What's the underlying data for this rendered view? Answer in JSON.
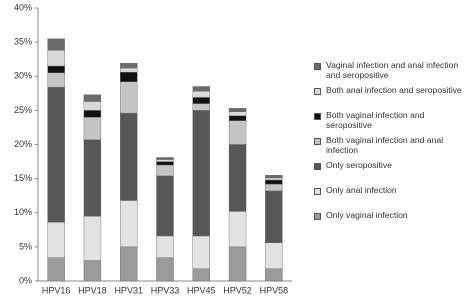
{
  "chart_data": {
    "type": "stacked-bar",
    "categories": [
      "HPV16",
      "HPV18",
      "HPV31",
      "HPV33",
      "HPV45",
      "HPV52",
      "HPV58"
    ],
    "series": [
      {
        "name": "Only vaginal infection",
        "color": "#9a9a9a",
        "values": [
          3.4,
          3.0,
          5.0,
          3.4,
          1.8,
          5.0,
          1.8
        ]
      },
      {
        "name": "Only anal infection",
        "color": "#e2e2e2",
        "values": [
          5.2,
          6.5,
          6.8,
          3.2,
          4.8,
          5.2,
          3.8
        ]
      },
      {
        "name": "Only seropositive",
        "color": "#575757",
        "values": [
          19.8,
          11.2,
          12.8,
          8.8,
          18.4,
          9.8,
          7.6
        ]
      },
      {
        "name": "Both vaginal infection and anal infection",
        "color": "#c4c4c4",
        "values": [
          2.1,
          3.3,
          4.6,
          1.6,
          1.0,
          3.5,
          1.0
        ]
      },
      {
        "name": "Both vaginal infection and seropositive",
        "color": "#111111",
        "values": [
          1.0,
          1.0,
          1.4,
          0.5,
          0.9,
          0.7,
          0.6
        ]
      },
      {
        "name": "Both anal infection and seropositive",
        "color": "#d9d9d9",
        "values": [
          2.3,
          1.3,
          0.6,
          0.3,
          0.9,
          0.6,
          0.3
        ]
      },
      {
        "name": "Vaginal infection and anal infection and seropositive",
        "color": "#6b6b6b",
        "values": [
          1.7,
          1.0,
          0.7,
          0.3,
          0.7,
          0.5,
          0.4
        ]
      }
    ],
    "ylim": [
      0,
      40
    ],
    "yticks": [
      {
        "value": 0,
        "label": "0%"
      },
      {
        "value": 5,
        "label": "5%"
      },
      {
        "value": 10,
        "label": "10%"
      },
      {
        "value": 15,
        "label": "15%"
      },
      {
        "value": 20,
        "label": "20%"
      },
      {
        "value": 25,
        "label": "25%"
      },
      {
        "value": 30,
        "label": "30%"
      },
      {
        "value": 35,
        "label": "35%"
      },
      {
        "value": 40,
        "label": "40%"
      }
    ],
    "grid": false,
    "legend": "right"
  }
}
